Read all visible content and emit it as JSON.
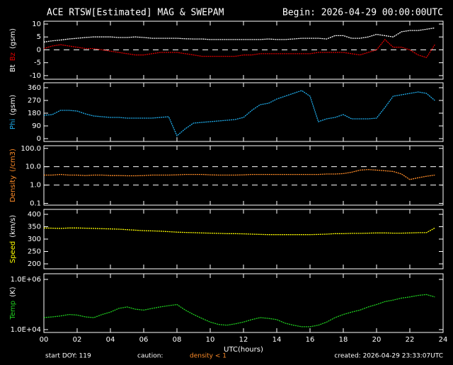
{
  "header": {
    "title": "ACE RTSW[Estimated] MAG & SWEPAM",
    "begin": "Begin: 2026-04-29 00:00:00UTC"
  },
  "footer": {
    "start": "start DOY: 119",
    "caution": "caution:",
    "density_note": "density < 1",
    "created": "created: 2026-04-29 23:33:07UTC"
  },
  "chart_data": [
    {
      "type": "line",
      "ylabel": "(gsm)",
      "ylabel_color": "#ffffff",
      "x": [
        0,
        0.5,
        1,
        1.5,
        2,
        2.5,
        3,
        3.5,
        4,
        4.5,
        5,
        5.5,
        6,
        6.5,
        7,
        7.5,
        8,
        8.5,
        9,
        9.5,
        10,
        10.5,
        11,
        11.5,
        12,
        12.5,
        13,
        13.5,
        14,
        14.5,
        15,
        15.5,
        16,
        16.5,
        17,
        17.5,
        18,
        18.5,
        19,
        19.5,
        20,
        20.5,
        21,
        21.5,
        22,
        22.5,
        23,
        23.5
      ],
      "series": [
        {
          "name": "Bt",
          "color": "#ffffff",
          "values": [
            3,
            3.5,
            3.8,
            4.2,
            4.5,
            4.8,
            5,
            5,
            5,
            4.8,
            4.8,
            5,
            4.8,
            4.5,
            4.5,
            4.5,
            4.5,
            4.3,
            4.2,
            4.2,
            4,
            4,
            4,
            4,
            4,
            4,
            4,
            4.2,
            4,
            4,
            4.2,
            4.5,
            4.5,
            4.5,
            4.2,
            5.5,
            5.5,
            4.5,
            4.5,
            5,
            6,
            5.5,
            5,
            7,
            7.5,
            7.5,
            8,
            8.5
          ]
        },
        {
          "name": "Bz",
          "color": "#e00000",
          "values": [
            0.5,
            1.5,
            2,
            1.5,
            1,
            0.5,
            0.5,
            0,
            -0.5,
            -1,
            -1.5,
            -2,
            -2,
            -1.5,
            -1,
            -1,
            -1,
            -1.5,
            -2,
            -2.5,
            -2.5,
            -2.5,
            -2.5,
            -2.5,
            -2,
            -2,
            -1.5,
            -1.5,
            -1.5,
            -1.5,
            -1.5,
            -1.5,
            -1.5,
            -1,
            -1,
            -1,
            -1,
            -1.5,
            -2,
            -1,
            0,
            4,
            1,
            1,
            0,
            -2,
            -3,
            2
          ]
        }
      ],
      "ylim": [
        -11.4,
        11.1
      ],
      "yticks": [
        10,
        5,
        0,
        -5,
        -10
      ],
      "dashed_lines": [
        0
      ],
      "xlim": [
        0,
        24
      ]
    },
    {
      "type": "line",
      "ylabel": "(gsm)",
      "ylabel_color": "#ffffff",
      "x": [
        0,
        0.5,
        1,
        1.5,
        2,
        2.5,
        3,
        3.5,
        4,
        4.5,
        5,
        5.5,
        6,
        6.5,
        7,
        7.5,
        8,
        8.5,
        9,
        9.5,
        10,
        10.5,
        11,
        11.5,
        12,
        12.5,
        13,
        13.5,
        14,
        14.5,
        15,
        15.5,
        16,
        16.5,
        17,
        17.5,
        18,
        18.5,
        19,
        19.5,
        20,
        20.5,
        21,
        21.5,
        22,
        22.5,
        23,
        23.5
      ],
      "series": [
        {
          "name": "Phi",
          "color": "#20b0f0",
          "values": [
            165,
            170,
            200,
            200,
            195,
            175,
            160,
            155,
            150,
            150,
            145,
            145,
            145,
            145,
            150,
            155,
            20,
            70,
            110,
            115,
            120,
            125,
            130,
            135,
            150,
            200,
            240,
            250,
            280,
            300,
            320,
            340,
            300,
            120,
            140,
            150,
            170,
            140,
            140,
            140,
            145,
            220,
            300,
            310,
            320,
            330,
            320,
            270
          ]
        }
      ],
      "ylim": [
        -20,
        395
      ],
      "yticks": [
        360,
        270,
        180,
        90,
        0
      ],
      "xlim": [
        0,
        24
      ]
    },
    {
      "type": "line",
      "ylabel": "(/cm3)",
      "ylabel_color": "#ff8c28",
      "log_y": true,
      "x": [
        0,
        0.5,
        1,
        1.5,
        2,
        2.5,
        3,
        3.5,
        4,
        4.5,
        5,
        5.5,
        6,
        6.5,
        7,
        7.5,
        8,
        8.5,
        9,
        9.5,
        10,
        10.5,
        11,
        11.5,
        12,
        12.5,
        13,
        13.5,
        14,
        14.5,
        15,
        15.5,
        16,
        16.5,
        17,
        17.5,
        18,
        18.5,
        19,
        19.5,
        20,
        20.5,
        21,
        21.5,
        22,
        22.5,
        23,
        23.5
      ],
      "series": [
        {
          "name": "Density",
          "color": "#ff8c28",
          "values": [
            3.5,
            3.5,
            3.8,
            3.5,
            3.5,
            3.3,
            3.5,
            3.5,
            3.3,
            3.3,
            3.2,
            3.2,
            3.3,
            3.5,
            3.5,
            3.5,
            3.6,
            3.8,
            3.8,
            3.8,
            3.6,
            3.5,
            3.5,
            3.5,
            3.6,
            3.8,
            3.8,
            3.8,
            3.8,
            3.8,
            3.8,
            3.8,
            3.8,
            3.8,
            4,
            4,
            4.2,
            5,
            6.5,
            7,
            6.5,
            6,
            5.5,
            4,
            2,
            2.5,
            3,
            3.5
          ]
        }
      ],
      "ylim": [
        0.08,
        140
      ],
      "yticks": [
        {
          "value": 100,
          "label": "100.0"
        },
        {
          "value": 10,
          "label": "10.0"
        },
        {
          "value": 1,
          "label": "1.0"
        },
        0.1
      ],
      "dashed_lines": [
        10,
        1
      ],
      "xlim": [
        0,
        24
      ]
    },
    {
      "type": "line",
      "ylabel": "(km/s)",
      "ylabel_color": "#ffffff",
      "x": [
        0,
        0.5,
        1,
        1.5,
        2,
        2.5,
        3,
        3.5,
        4,
        4.5,
        5,
        5.5,
        6,
        6.5,
        7,
        7.5,
        8,
        8.5,
        9,
        9.5,
        10,
        10.5,
        11,
        11.5,
        12,
        12.5,
        13,
        13.5,
        14,
        14.5,
        15,
        15.5,
        16,
        16.5,
        17,
        17.5,
        18,
        18.5,
        19,
        19.5,
        20,
        20.5,
        21,
        21.5,
        22,
        22.5,
        23,
        23.5
      ],
      "series": [
        {
          "name": "Speed",
          "color": "#ffff00",
          "values": [
            345,
            344,
            343,
            345,
            345,
            344,
            343,
            342,
            341,
            340,
            338,
            336,
            334,
            333,
            332,
            330,
            328,
            327,
            326,
            325,
            324,
            323,
            322,
            322,
            321,
            320,
            319,
            318,
            318,
            318,
            318,
            318,
            318,
            319,
            320,
            322,
            322,
            323,
            323,
            324,
            325,
            325,
            324,
            324,
            325,
            326,
            326,
            345
          ]
        }
      ],
      "ylim": [
        180,
        420
      ],
      "yticks": [
        400,
        350,
        300,
        250,
        200
      ],
      "xlim": [
        0,
        24
      ]
    },
    {
      "type": "line",
      "ylabel": "(K)",
      "ylabel_color": "#ffffff",
      "log_y": true,
      "xlabel": "UTC(hours)",
      "x": [
        0,
        0.5,
        1,
        1.5,
        2,
        2.5,
        3,
        3.5,
        4,
        4.5,
        5,
        5.5,
        6,
        6.5,
        7,
        7.5,
        8,
        8.5,
        9,
        9.5,
        10,
        10.5,
        11,
        11.5,
        12,
        12.5,
        13,
        13.5,
        14,
        14.5,
        15,
        15.5,
        16,
        16.5,
        17,
        17.5,
        18,
        18.5,
        19,
        19.5,
        20,
        20.5,
        21,
        21.5,
        22,
        22.5,
        23,
        23.5
      ],
      "series": [
        {
          "name": "Temp",
          "color": "#20d020",
          "values": [
            30000,
            32000,
            35000,
            40000,
            38000,
            32000,
            30000,
            40000,
            50000,
            70000,
            80000,
            65000,
            60000,
            70000,
            80000,
            90000,
            100000,
            60000,
            40000,
            28000,
            20000,
            16000,
            15000,
            17000,
            20000,
            25000,
            30000,
            28000,
            25000,
            18000,
            15000,
            13000,
            13000,
            15000,
            20000,
            30000,
            40000,
            50000,
            60000,
            80000,
            100000,
            130000,
            150000,
            180000,
            200000,
            230000,
            250000,
            200000
          ]
        }
      ],
      "ylim": [
        7700,
        1680000
      ],
      "yticks": [
        {
          "value": 1000000,
          "label": "1.0E+06"
        },
        {
          "value": 10000,
          "label": "1.0E+04"
        }
      ],
      "xlim": [
        0,
        24
      ],
      "xticks": [
        {
          "value": 0,
          "label": "00"
        },
        {
          "value": 2,
          "label": "02"
        },
        {
          "value": 4,
          "label": "04"
        },
        {
          "value": 6,
          "label": "06"
        },
        {
          "value": 8,
          "label": "08"
        },
        10,
        12,
        14,
        16,
        18,
        20,
        22,
        24
      ]
    }
  ]
}
